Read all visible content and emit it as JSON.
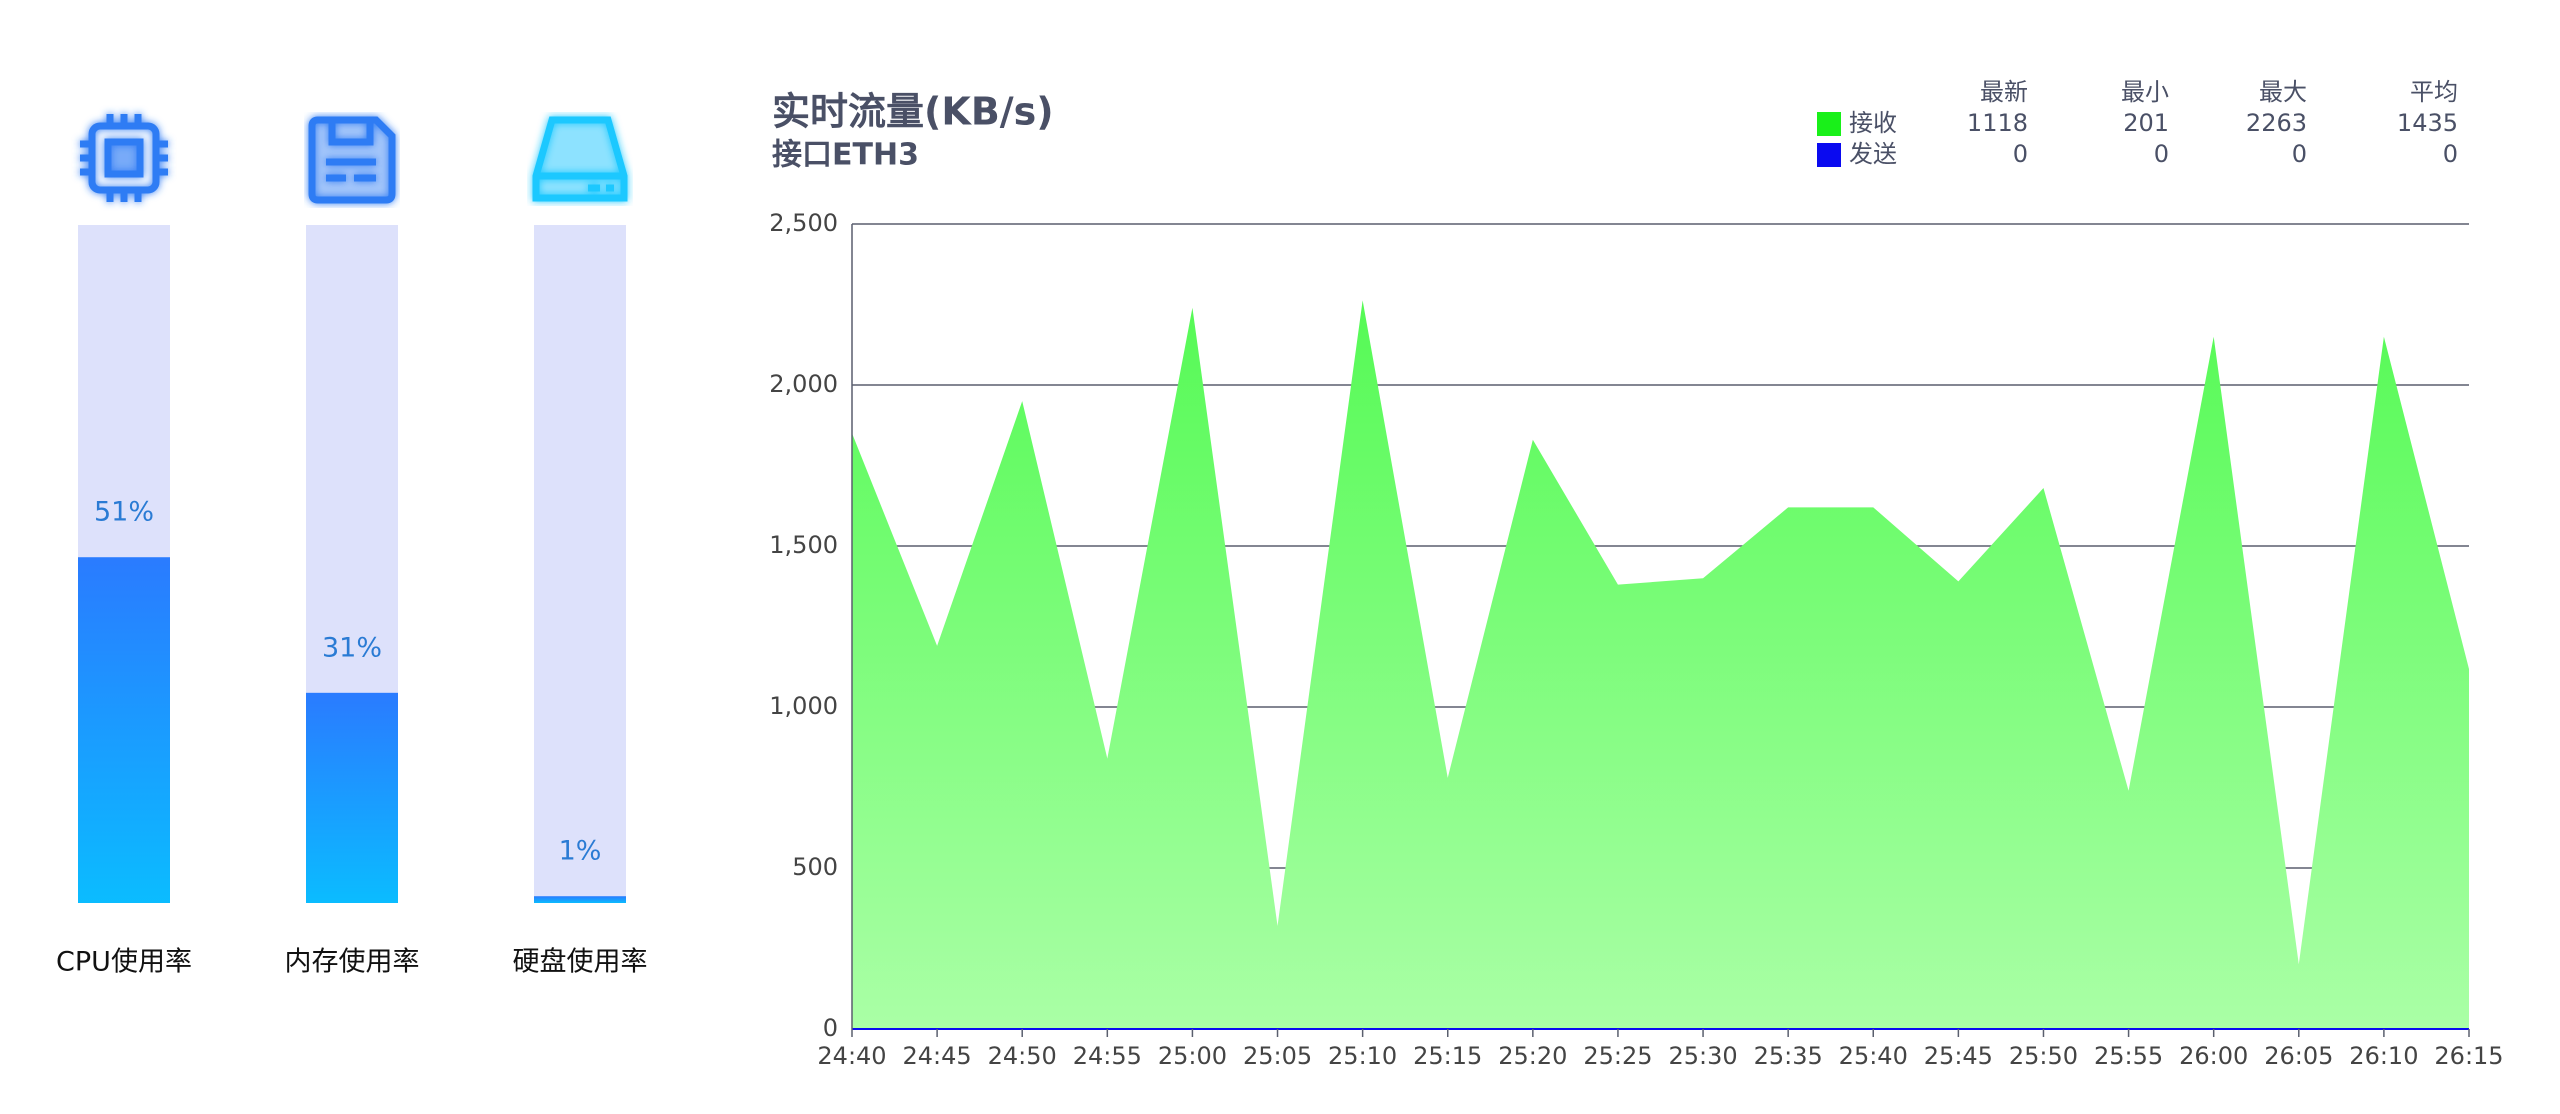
{
  "chart_data": [
    {
      "type": "bar",
      "categories": [
        "CPU使用率",
        "内存使用率",
        "硬盘使用率"
      ],
      "values": [
        51,
        31,
        1
      ],
      "value_labels": [
        "51%",
        "31%",
        "1%"
      ],
      "ylim": [
        0,
        100
      ]
    },
    {
      "type": "area",
      "title": "实时流量(KB/s)",
      "subtitle": "接口ETH3",
      "x": [
        "24:40",
        "24:45",
        "24:50",
        "24:55",
        "25:00",
        "25:05",
        "25:10",
        "25:15",
        "25:20",
        "25:25",
        "25:30",
        "25:35",
        "25:40",
        "25:45",
        "25:50",
        "25:55",
        "26:00",
        "26:05",
        "26:10",
        "26:15"
      ],
      "series": [
        {
          "name": "接收",
          "color": "#19f019",
          "values": [
            1850,
            1190,
            1950,
            840,
            2240,
            320,
            2263,
            780,
            1830,
            1380,
            1400,
            1620,
            1620,
            1390,
            1680,
            740,
            2150,
            201,
            2150,
            1118
          ]
        },
        {
          "name": "发送",
          "color": "#0a0af0",
          "values": [
            0,
            0,
            0,
            0,
            0,
            0,
            0,
            0,
            0,
            0,
            0,
            0,
            0,
            0,
            0,
            0,
            0,
            0,
            0,
            0
          ]
        }
      ],
      "legend_table": {
        "columns": [
          "最新",
          "最小",
          "最大",
          "平均"
        ],
        "rows": [
          [
            1118,
            201,
            2263,
            1435
          ],
          [
            0,
            0,
            0,
            0
          ]
        ]
      },
      "ylim": [
        0,
        2500
      ],
      "yticks": [
        0,
        500,
        {
          "value": 1000,
          "label": "1,000"
        },
        {
          "value": 1500,
          "label": "1,500"
        },
        {
          "value": 2000,
          "label": "2,000"
        },
        {
          "value": 2500,
          "label": "2,500"
        }
      ],
      "grid": true
    }
  ]
}
